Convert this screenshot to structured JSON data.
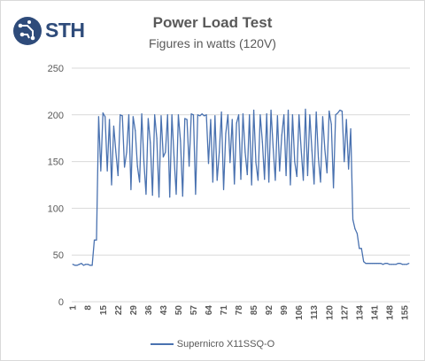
{
  "logo": {
    "text": "STH"
  },
  "chart_data": {
    "type": "line",
    "title": "Power Load Test",
    "subtitle": "Figures in watts (120V)",
    "xlabel": "",
    "ylabel": "",
    "ylim": [
      0,
      250
    ],
    "yticks": [
      "0",
      "50",
      "100",
      "150",
      "200",
      "250"
    ],
    "xticks": [
      "1",
      "8",
      "15",
      "22",
      "29",
      "36",
      "43",
      "50",
      "57",
      "64",
      "71",
      "78",
      "85",
      "92",
      "99",
      "106",
      "113",
      "120",
      "127",
      "134",
      "141",
      "148",
      "155"
    ],
    "grid": true,
    "legend_position": "bottom",
    "series_color": "#4a72b0",
    "x_start": 1,
    "series": [
      {
        "name": "Supernicro X11SSQ-O",
        "values": [
          40,
          39,
          39,
          40,
          41,
          39,
          40,
          40,
          39,
          39,
          66,
          66,
          198,
          140,
          202,
          198,
          140,
          195,
          125,
          188,
          160,
          135,
          200,
          199,
          144,
          160,
          200,
          120,
          198,
          183,
          145,
          128,
          201,
          150,
          115,
          196,
          170,
          114,
          200,
          175,
          112,
          199,
          155,
          160,
          200,
          112,
          200,
          155,
          115,
          200,
          172,
          113,
          196,
          195,
          145,
          201,
          200,
          115,
          200,
          199,
          201,
          199,
          200,
          148,
          195,
          128,
          199,
          130,
          160,
          203,
          120,
          180,
          200,
          149,
          195,
          126,
          191,
          200,
          131,
          201,
          160,
          136,
          200,
          125,
          205,
          149,
          130,
          200,
          171,
          131,
          201,
          128,
          205,
          165,
          130,
          199,
          140,
          178,
          200,
          135,
          205,
          125,
          200,
          150,
          134,
          200,
          163,
          130,
          206,
          135,
          200,
          162,
          126,
          203,
          154,
          128,
          198,
          163,
          138,
          204,
          190,
          122,
          200,
          202,
          205,
          204,
          150,
          195,
          142,
          185,
          88,
          78,
          73,
          57,
          57,
          43,
          41,
          41,
          41,
          41,
          41,
          41,
          41,
          41,
          40,
          41,
          41,
          40,
          40,
          40,
          40,
          41,
          41,
          40,
          40,
          40,
          41
        ]
      }
    ]
  }
}
